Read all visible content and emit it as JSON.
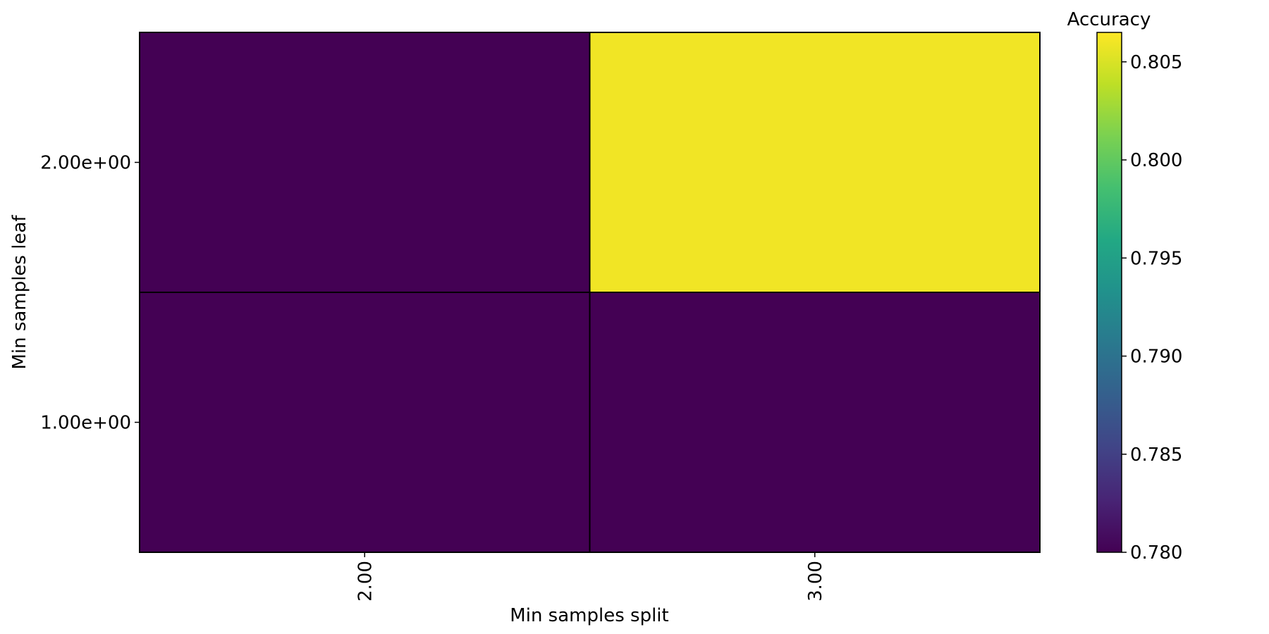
{
  "chart_data": {
    "type": "heatmap",
    "title": "",
    "xlabel": "Min samples split",
    "ylabel": "Min samples leaf",
    "x_ticks": [
      "2.00",
      "3.00"
    ],
    "y_ticks": [
      "2.00e+00",
      "1.00e+00"
    ],
    "values": [
      [
        0.78,
        0.806
      ],
      [
        0.78,
        0.78
      ]
    ],
    "colorbar": {
      "label": "Accuracy",
      "vmin": 0.78,
      "vmax": 0.8065,
      "ticks": [
        "0.780",
        "0.785",
        "0.790",
        "0.795",
        "0.800",
        "0.805"
      ],
      "colormap": "viridis"
    }
  }
}
